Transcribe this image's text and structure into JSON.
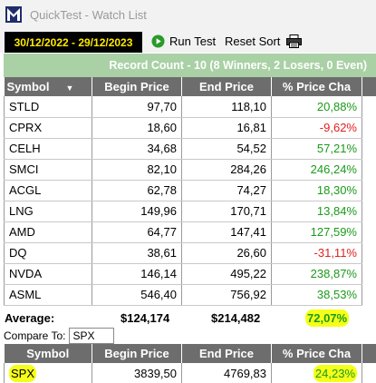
{
  "window": {
    "title": "QuickTest - Watch List"
  },
  "toolbar": {
    "date_range": "30/12/2022 - 29/12/2023",
    "run_label": "Run Test",
    "reset_label": "Reset Sort",
    "print_icon": "printer-icon"
  },
  "summary": {
    "record_count": "Record Count - 10 (8 Winners, 2 Losers, 0 Even)"
  },
  "table": {
    "columns": [
      "Symbol",
      "Begin Price",
      "End Price",
      "% Price Cha"
    ],
    "sort_indicator": "▼",
    "rows": [
      {
        "symbol": "STLD",
        "begin": "97,70",
        "end": "118,10",
        "change": "20,88%",
        "dir": "pos"
      },
      {
        "symbol": "CPRX",
        "begin": "18,60",
        "end": "16,81",
        "change": "-9,62%",
        "dir": "neg"
      },
      {
        "symbol": "CELH",
        "begin": "34,68",
        "end": "54,52",
        "change": "57,21%",
        "dir": "pos"
      },
      {
        "symbol": "SMCI",
        "begin": "82,10",
        "end": "284,26",
        "change": "246,24%",
        "dir": "pos"
      },
      {
        "symbol": "ACGL",
        "begin": "62,78",
        "end": "74,27",
        "change": "18,30%",
        "dir": "pos"
      },
      {
        "symbol": "LNG",
        "begin": "149,96",
        "end": "170,71",
        "change": "13,84%",
        "dir": "pos"
      },
      {
        "symbol": "AMD",
        "begin": "64,77",
        "end": "147,41",
        "change": "127,59%",
        "dir": "pos"
      },
      {
        "symbol": "DQ",
        "begin": "38,61",
        "end": "26,60",
        "change": "-31,11%",
        "dir": "neg"
      },
      {
        "symbol": "NVDA",
        "begin": "146,14",
        "end": "495,22",
        "change": "238,87%",
        "dir": "pos"
      },
      {
        "symbol": "ASML",
        "begin": "546,40",
        "end": "756,92",
        "change": "38,53%",
        "dir": "pos"
      }
    ]
  },
  "average": {
    "label": "Average:",
    "begin": "$124,174",
    "end": "$214,482",
    "change": "72,07%"
  },
  "compare": {
    "label": "Compare To:",
    "value": "SPX",
    "columns": [
      "Symbol",
      "Begin Price",
      "End Price",
      "% Price Cha"
    ],
    "row": {
      "symbol": "SPX",
      "begin": "3839,50",
      "end": "4769,83",
      "change": "24,23%"
    }
  },
  "colors": {
    "positive": "#1a9a1a",
    "negative": "#e02020",
    "header_bg": "#6d6d6d",
    "summary_bg": "#a9d1a5",
    "highlight": "#f5ff1a",
    "date_text": "#ffe800"
  }
}
